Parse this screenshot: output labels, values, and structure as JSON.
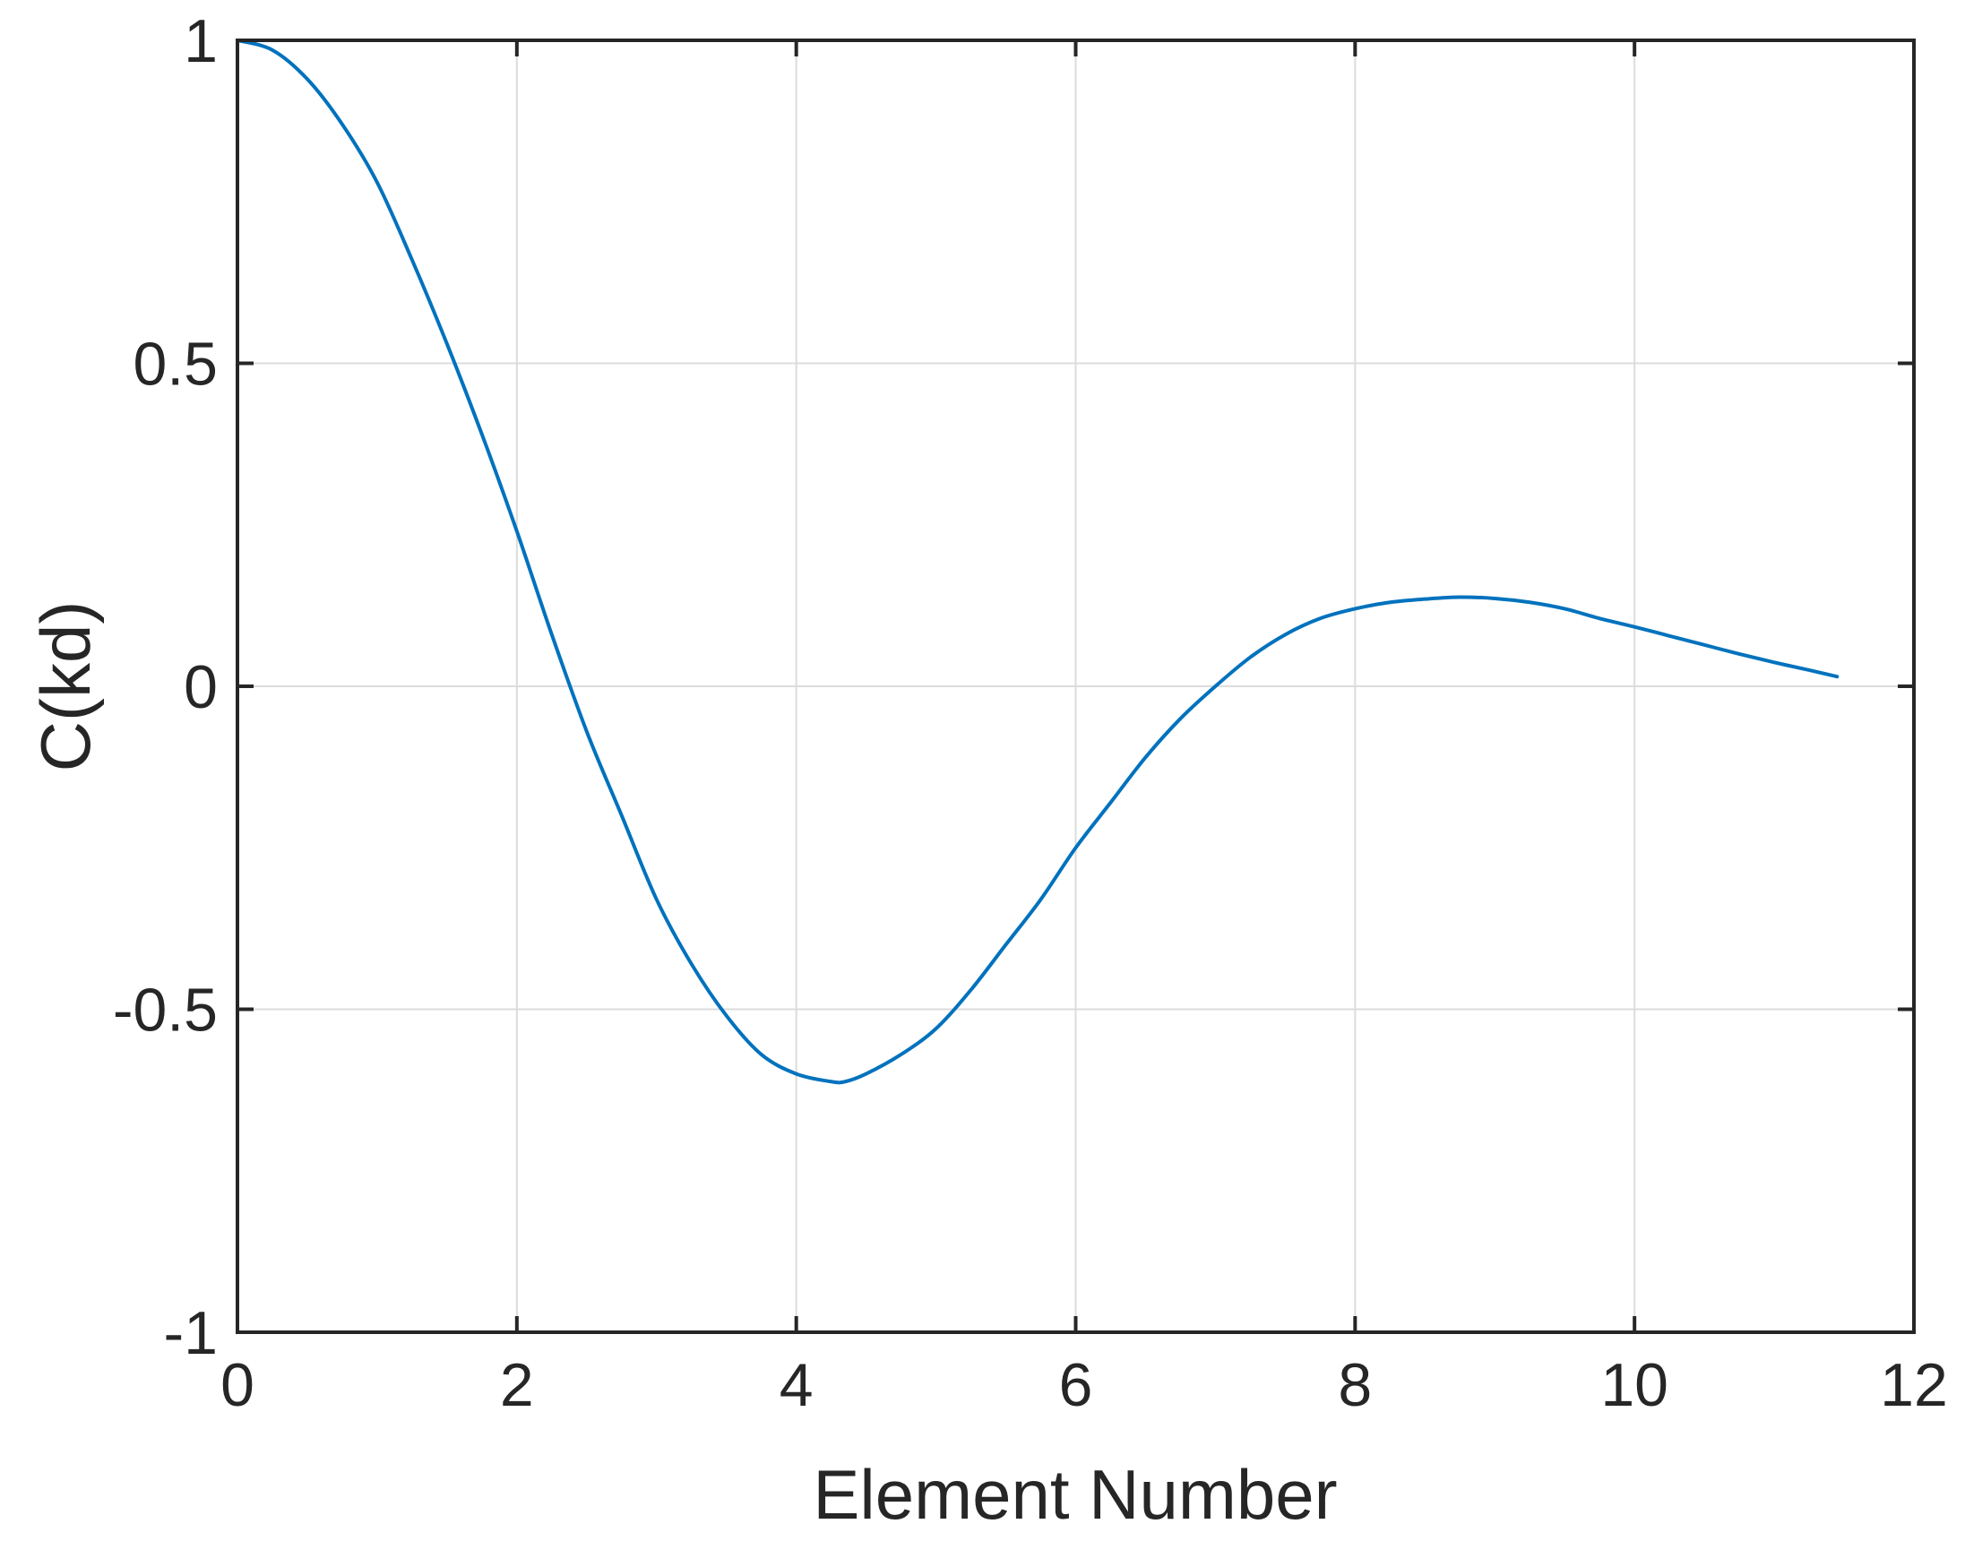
{
  "chart_data": {
    "type": "line",
    "xlabel": "Element Number",
    "ylabel": "C(kd)",
    "xlim": [
      0,
      12
    ],
    "ylim": [
      -1,
      1
    ],
    "xticks": [
      0,
      2,
      4,
      6,
      8,
      10,
      12
    ],
    "yticks": [
      -1,
      -0.5,
      0,
      0.5,
      1
    ],
    "xtick_labels": [
      "0",
      "2",
      "4",
      "6",
      "8",
      "10",
      "12"
    ],
    "ytick_labels": [
      "-1",
      "-0.5",
      "0",
      "0.5",
      "1"
    ],
    "grid": true,
    "line_color": "#0072BD",
    "series": [
      {
        "x": [
          0,
          0.25,
          0.5,
          0.75,
          1.0,
          1.25,
          1.5,
          1.75,
          2.0,
          2.25,
          2.5,
          2.75,
          3.0,
          3.25,
          3.5,
          3.75,
          4.0,
          4.25,
          4.35,
          4.5,
          4.75,
          5.0,
          5.25,
          5.5,
          5.75,
          6.0,
          6.25,
          6.5,
          6.75,
          7.0,
          7.25,
          7.5,
          7.75,
          8.0,
          8.25,
          8.5,
          8.75,
          9.0,
          9.25,
          9.5,
          9.75,
          10.0,
          10.25,
          10.5,
          10.75,
          11.0,
          11.25,
          11.45
        ],
        "y": [
          1.0,
          0.985,
          0.94,
          0.87,
          0.78,
          0.66,
          0.53,
          0.39,
          0.24,
          0.08,
          -0.07,
          -0.2,
          -0.33,
          -0.43,
          -0.51,
          -0.57,
          -0.6,
          -0.612,
          -0.612,
          -0.6,
          -0.57,
          -0.53,
          -0.47,
          -0.4,
          -0.33,
          -0.25,
          -0.18,
          -0.11,
          -0.05,
          0.0,
          0.045,
          0.08,
          0.105,
          0.12,
          0.13,
          0.135,
          0.138,
          0.136,
          0.13,
          0.12,
          0.105,
          0.092,
          0.078,
          0.064,
          0.05,
          0.037,
          0.025,
          0.015
        ]
      }
    ]
  }
}
